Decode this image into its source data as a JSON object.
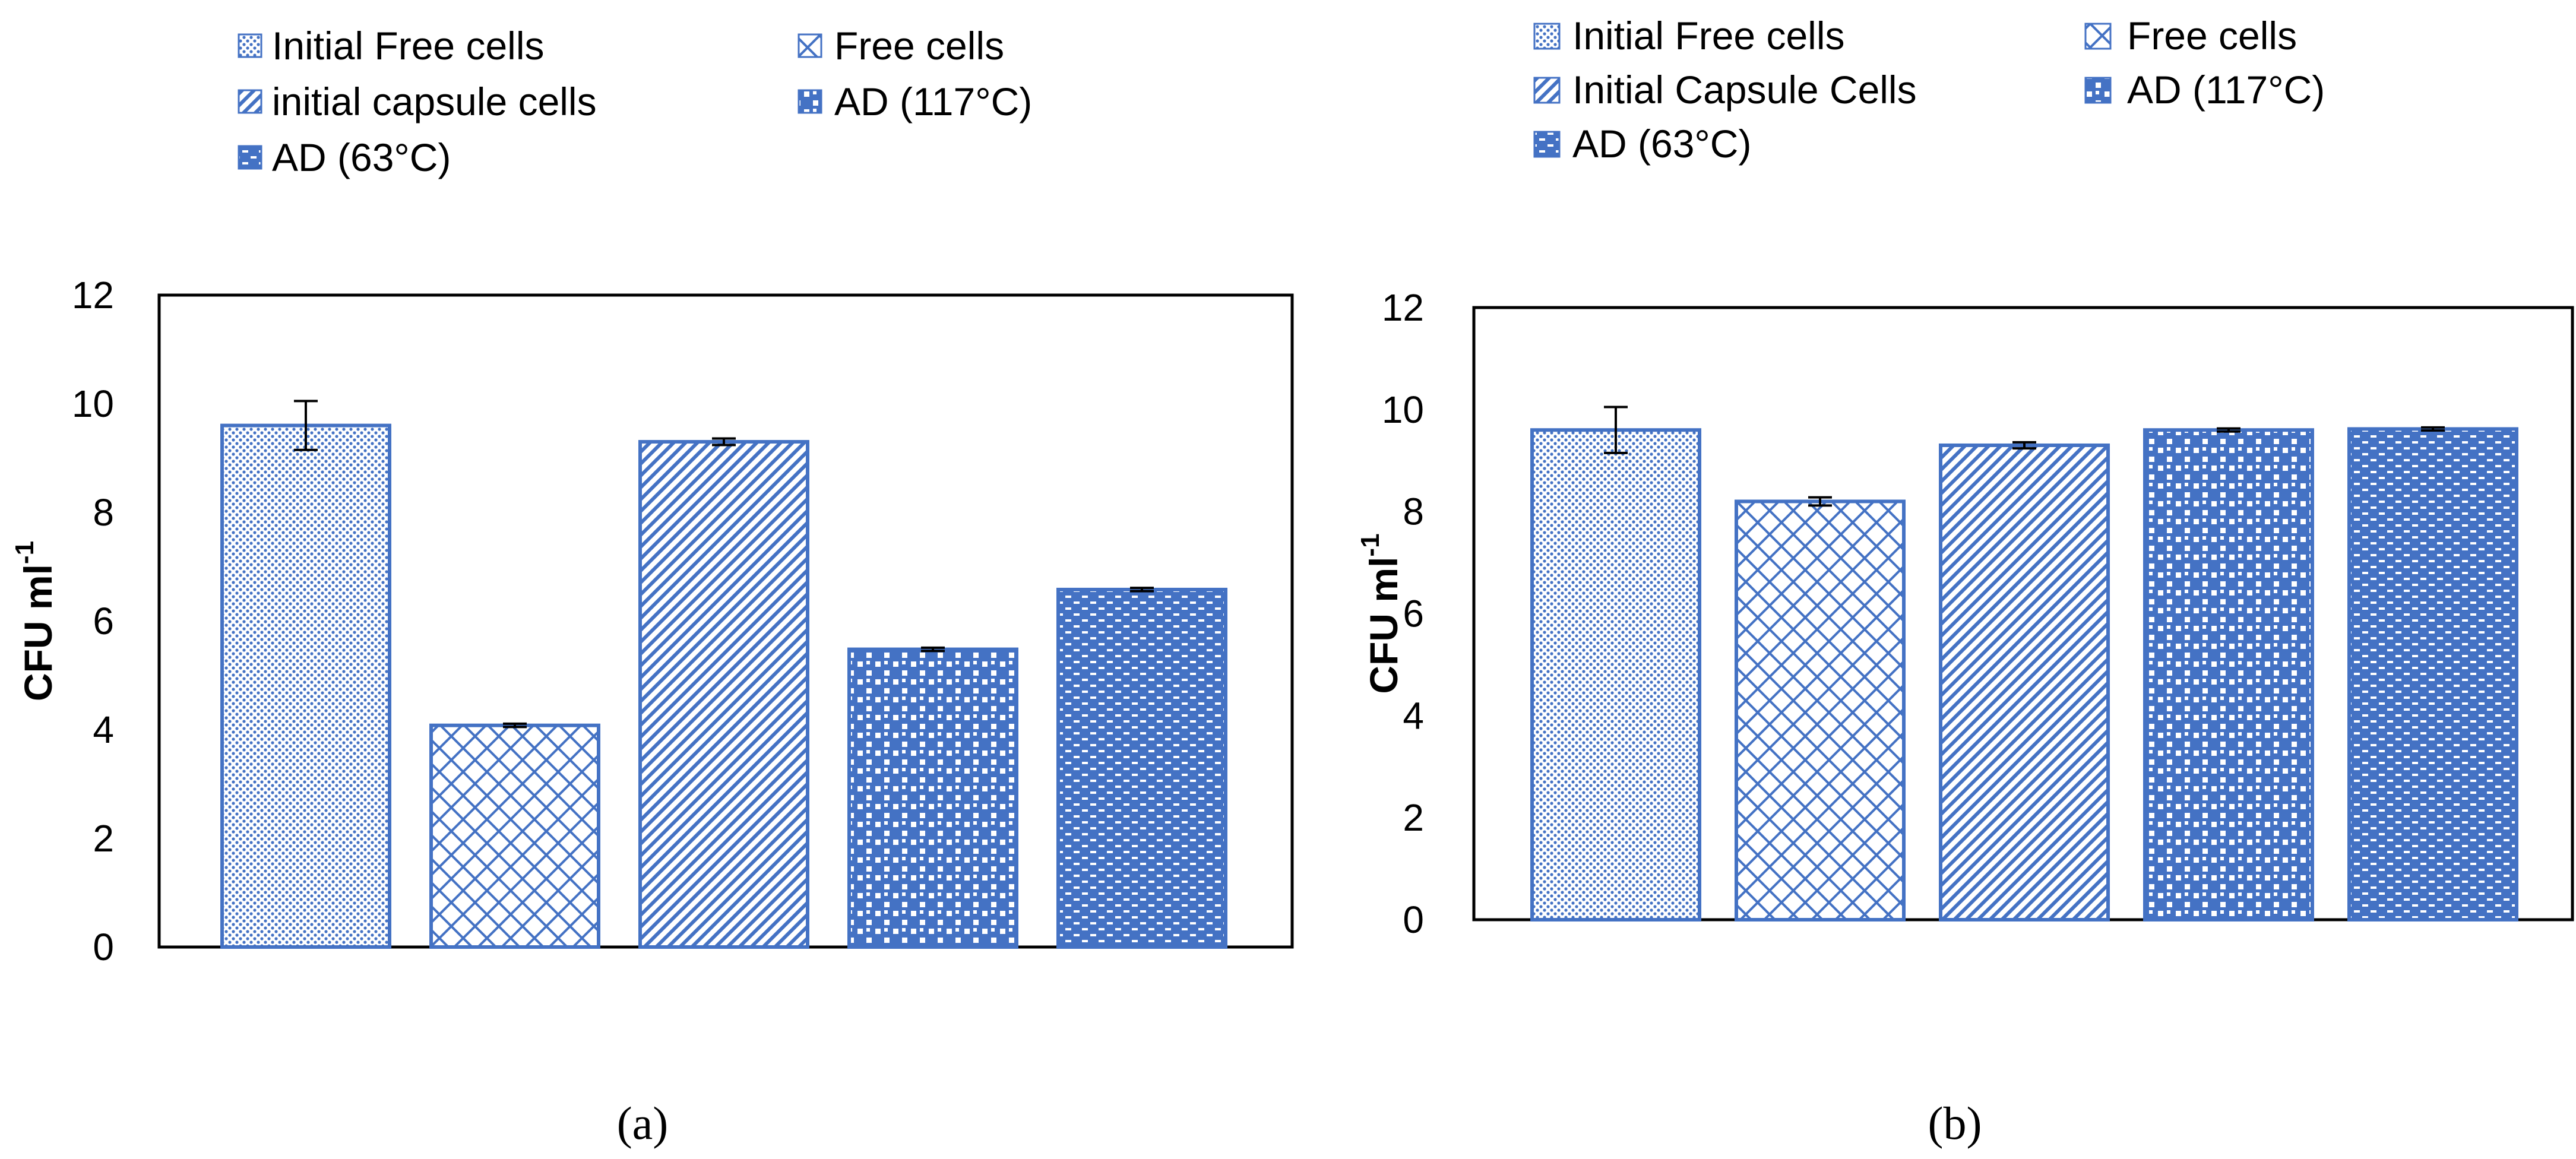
{
  "colors": {
    "bar": "#4472c4",
    "axis": "#000000",
    "error": "#000000"
  },
  "legend_a": [
    {
      "label": "Initial Free cells",
      "pattern": "dots"
    },
    {
      "label": "Free cells",
      "pattern": "cross"
    },
    {
      "label": "initial capsule cells",
      "pattern": "diag"
    },
    {
      "label": "AD (117°C)",
      "pattern": "checker"
    },
    {
      "label": "AD (63°C)",
      "pattern": "brick"
    }
  ],
  "legend_b": [
    {
      "label": "Initial Free cells",
      "pattern": "dots"
    },
    {
      "label": "Free cells",
      "pattern": "cross"
    },
    {
      "label": "Initial Capsule Cells",
      "pattern": "diag"
    },
    {
      "label": "AD (117°C)",
      "pattern": "checker"
    },
    {
      "label": "AD (63°C)",
      "pattern": "brick"
    }
  ],
  "chart_data": [
    {
      "type": "bar",
      "panel": "(a)",
      "title": "",
      "xlabel": "",
      "ylabel": "CFU ml",
      "ylabel_sup": "-1",
      "ylim": [
        0,
        12
      ],
      "yticks": [
        0,
        2,
        4,
        6,
        8,
        10,
        12
      ],
      "categories": [
        "Initial Free cells",
        "Free cells",
        "initial capsule cells",
        "AD (117°C)",
        "AD (63°C)"
      ],
      "values": [
        9.6,
        4.08,
        9.3,
        5.48,
        6.58
      ],
      "errors": [
        0.45,
        0.03,
        0.06,
        0.03,
        0.03
      ],
      "patterns": [
        "dots",
        "cross",
        "diag",
        "checker",
        "brick"
      ]
    },
    {
      "type": "bar",
      "panel": "(b)",
      "title": "",
      "xlabel": "",
      "ylabel": "CFU ml",
      "ylabel_sup": "-1",
      "ylim": [
        0,
        12
      ],
      "yticks": [
        0,
        2,
        4,
        6,
        8,
        10,
        12
      ],
      "categories": [
        "Initial Free cells",
        "Free cells",
        "Initial Capsule Cells",
        "AD (117°C)",
        "AD (63°C)"
      ],
      "values": [
        9.6,
        8.2,
        9.3,
        9.6,
        9.62
      ],
      "errors": [
        0.45,
        0.08,
        0.06,
        0.03,
        0.03
      ],
      "patterns": [
        "dots",
        "cross",
        "diag",
        "checker",
        "brick"
      ]
    }
  ]
}
